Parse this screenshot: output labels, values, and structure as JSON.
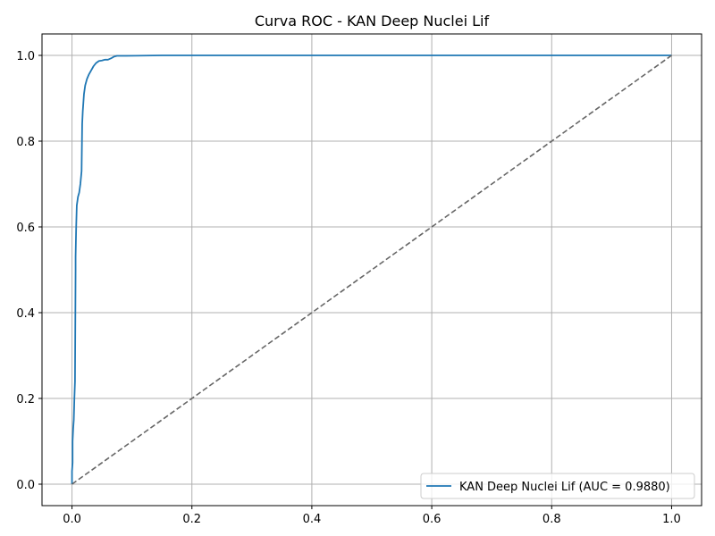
{
  "chart_data": {
    "type": "line",
    "title": "Curva ROC - KAN Deep Nuclei Lif",
    "xlabel": "",
    "ylabel": "",
    "xlim": [
      -0.05,
      1.05
    ],
    "ylim": [
      -0.05,
      1.05
    ],
    "x_ticks": [
      0.0,
      0.2,
      0.4,
      0.6,
      0.8,
      1.0
    ],
    "y_ticks": [
      0.0,
      0.2,
      0.4,
      0.6,
      0.8,
      1.0
    ],
    "x_tick_labels": [
      "0.0",
      "0.2",
      "0.4",
      "0.6",
      "0.8",
      "1.0"
    ],
    "y_tick_labels": [
      "0.0",
      "0.2",
      "0.4",
      "0.6",
      "0.8",
      "1.0"
    ],
    "grid": true,
    "legend_position": "bottom-right",
    "series": [
      {
        "name": "KAN Deep Nuclei Lif (AUC = 0.9880)",
        "color": "#1f77b4",
        "style": "solid",
        "x": [
          0.0,
          0.0,
          0.001,
          0.001,
          0.002,
          0.003,
          0.004,
          0.005,
          0.006,
          0.006,
          0.007,
          0.008,
          0.009,
          0.01,
          0.012,
          0.014,
          0.016,
          0.017,
          0.018,
          0.019,
          0.02,
          0.022,
          0.025,
          0.028,
          0.032,
          0.036,
          0.04,
          0.045,
          0.05,
          0.055,
          0.06,
          0.065,
          0.07,
          0.075,
          0.09,
          0.12,
          0.15,
          0.2,
          0.4,
          0.6,
          0.8,
          1.0
        ],
        "y": [
          0.0,
          0.03,
          0.05,
          0.1,
          0.13,
          0.15,
          0.2,
          0.24,
          0.5,
          0.53,
          0.6,
          0.65,
          0.66,
          0.67,
          0.68,
          0.7,
          0.73,
          0.84,
          0.87,
          0.89,
          0.91,
          0.93,
          0.945,
          0.955,
          0.965,
          0.975,
          0.982,
          0.987,
          0.988,
          0.99,
          0.99,
          0.993,
          0.997,
          0.999,
          0.999,
          0.9995,
          1.0,
          1.0,
          1.0,
          1.0,
          1.0,
          1.0
        ]
      },
      {
        "name": "",
        "color": "#666666",
        "style": "dashed",
        "x": [
          0.0,
          1.0
        ],
        "y": [
          0.0,
          1.0
        ]
      }
    ]
  }
}
